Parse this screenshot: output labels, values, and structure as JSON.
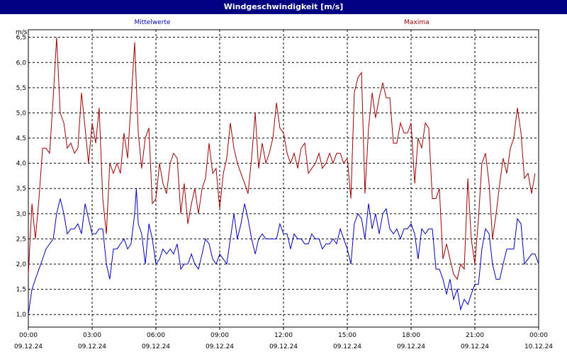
{
  "chart_data": {
    "type": "line",
    "title": "Windgeschwindigkeit [m/s]",
    "ylabel": "m/s",
    "ylim": [
      0.75,
      6.65
    ],
    "yticks": [
      1.0,
      1.5,
      2.0,
      2.5,
      3.0,
      3.5,
      4.0,
      4.5,
      5.0,
      5.5,
      6.0,
      6.5
    ],
    "ytick_labels": [
      "1,0",
      "1,5",
      "2,0",
      "2,5",
      "3,0",
      "3,5",
      "4,0",
      "4,5",
      "5,0",
      "5,5",
      "6,0",
      "6,5"
    ],
    "xlim": [
      0,
      24
    ],
    "xticks": [
      {
        "time": "00:00",
        "date": "09.12.24"
      },
      {
        "time": "03:00",
        "date": "09.12.24"
      },
      {
        "time": "06:00",
        "date": "09.12.24"
      },
      {
        "time": "09:00",
        "date": "09.12.24"
      },
      {
        "time": "12:00",
        "date": "09.12.24"
      },
      {
        "time": "15:00",
        "date": "09.12.24"
      },
      {
        "time": "18:00",
        "date": "09.12.24"
      },
      {
        "time": "21:00",
        "date": "09.12.24"
      },
      {
        "time": "00:00",
        "date": "10.12.24"
      }
    ],
    "grid": true,
    "legend": "top",
    "series": [
      {
        "name": "Mittelwerte",
        "color": "#0000c0",
        "points": [
          [
            0,
            1.0
          ],
          [
            0.17,
            1.5
          ],
          [
            0.33,
            1.7
          ],
          [
            0.5,
            1.9
          ],
          [
            0.67,
            2.1
          ],
          [
            0.83,
            2.3
          ],
          [
            1,
            2.4
          ],
          [
            1.17,
            2.5
          ],
          [
            1.33,
            3.0
          ],
          [
            1.5,
            3.3
          ],
          [
            1.67,
            3.0
          ],
          [
            1.83,
            2.6
          ],
          [
            2,
            2.7
          ],
          [
            2.17,
            2.7
          ],
          [
            2.33,
            2.8
          ],
          [
            2.5,
            2.6
          ],
          [
            2.67,
            3.2
          ],
          [
            2.83,
            2.9
          ],
          [
            3,
            2.6
          ],
          [
            3.17,
            2.6
          ],
          [
            3.33,
            2.7
          ],
          [
            3.5,
            2.7
          ],
          [
            3.67,
            2.0
          ],
          [
            3.83,
            1.7
          ],
          [
            4,
            2.3
          ],
          [
            4.17,
            2.3
          ],
          [
            4.33,
            2.4
          ],
          [
            4.5,
            2.5
          ],
          [
            4.67,
            2.3
          ],
          [
            4.83,
            2.4
          ],
          [
            5,
            3.0
          ],
          [
            5.08,
            3.5
          ],
          [
            5.17,
            2.8
          ],
          [
            5.33,
            2.6
          ],
          [
            5.5,
            2.0
          ],
          [
            5.67,
            2.8
          ],
          [
            5.83,
            2.5
          ],
          [
            6,
            2.0
          ],
          [
            6.17,
            2.1
          ],
          [
            6.33,
            2.3
          ],
          [
            6.5,
            2.2
          ],
          [
            6.67,
            2.3
          ],
          [
            6.83,
            2.2
          ],
          [
            7,
            2.4
          ],
          [
            7.17,
            1.9
          ],
          [
            7.33,
            2.0
          ],
          [
            7.5,
            2.0
          ],
          [
            7.67,
            2.2
          ],
          [
            7.83,
            2.0
          ],
          [
            8,
            1.9
          ],
          [
            8.17,
            2.2
          ],
          [
            8.33,
            2.5
          ],
          [
            8.5,
            2.4
          ],
          [
            8.67,
            2.1
          ],
          [
            8.83,
            2.0
          ],
          [
            9,
            2.2
          ],
          [
            9.17,
            2.1
          ],
          [
            9.33,
            2.0
          ],
          [
            9.5,
            2.5
          ],
          [
            9.67,
            3.0
          ],
          [
            9.83,
            2.5
          ],
          [
            10,
            2.8
          ],
          [
            10.17,
            3.2
          ],
          [
            10.33,
            2.9
          ],
          [
            10.5,
            2.5
          ],
          [
            10.67,
            2.2
          ],
          [
            10.83,
            2.5
          ],
          [
            11,
            2.6
          ],
          [
            11.17,
            2.5
          ],
          [
            11.33,
            2.5
          ],
          [
            11.5,
            2.5
          ],
          [
            11.67,
            2.5
          ],
          [
            11.83,
            2.8
          ],
          [
            12,
            2.6
          ],
          [
            12.17,
            2.6
          ],
          [
            12.33,
            2.3
          ],
          [
            12.5,
            2.6
          ],
          [
            12.67,
            2.5
          ],
          [
            12.83,
            2.5
          ],
          [
            13,
            2.4
          ],
          [
            13.17,
            2.4
          ],
          [
            13.33,
            2.6
          ],
          [
            13.5,
            2.5
          ],
          [
            13.67,
            2.5
          ],
          [
            13.83,
            2.3
          ],
          [
            14,
            2.4
          ],
          [
            14.17,
            2.4
          ],
          [
            14.33,
            2.5
          ],
          [
            14.5,
            2.4
          ],
          [
            14.67,
            2.7
          ],
          [
            14.83,
            2.5
          ],
          [
            15,
            2.3
          ],
          [
            15.17,
            2.0
          ],
          [
            15.33,
            2.8
          ],
          [
            15.5,
            3.0
          ],
          [
            15.67,
            2.9
          ],
          [
            15.83,
            2.5
          ],
          [
            16,
            3.2
          ],
          [
            16.17,
            2.7
          ],
          [
            16.33,
            3.0
          ],
          [
            16.5,
            2.6
          ],
          [
            16.67,
            3.0
          ],
          [
            16.83,
            3.1
          ],
          [
            17,
            2.7
          ],
          [
            17.17,
            2.6
          ],
          [
            17.33,
            2.7
          ],
          [
            17.5,
            2.5
          ],
          [
            17.67,
            2.7
          ],
          [
            17.83,
            2.7
          ],
          [
            18,
            2.8
          ],
          [
            18.17,
            2.6
          ],
          [
            18.33,
            2.1
          ],
          [
            18.5,
            2.7
          ],
          [
            18.67,
            2.6
          ],
          [
            18.83,
            2.7
          ],
          [
            19,
            2.7
          ],
          [
            19.17,
            1.9
          ],
          [
            19.33,
            1.9
          ],
          [
            19.5,
            1.7
          ],
          [
            19.67,
            1.4
          ],
          [
            19.83,
            1.7
          ],
          [
            20,
            1.3
          ],
          [
            20.17,
            1.5
          ],
          [
            20.33,
            1.1
          ],
          [
            20.5,
            1.3
          ],
          [
            20.67,
            1.2
          ],
          [
            20.83,
            1.4
          ],
          [
            21,
            1.6
          ],
          [
            21.17,
            1.6
          ],
          [
            21.33,
            2.3
          ],
          [
            21.5,
            2.7
          ],
          [
            21.67,
            2.6
          ],
          [
            21.83,
            2.0
          ],
          [
            22,
            1.7
          ],
          [
            22.17,
            1.7
          ],
          [
            22.33,
            2.0
          ],
          [
            22.5,
            2.3
          ],
          [
            22.67,
            2.3
          ],
          [
            22.83,
            2.3
          ],
          [
            23,
            2.9
          ],
          [
            23.17,
            2.8
          ],
          [
            23.33,
            2.0
          ],
          [
            23.5,
            2.1
          ],
          [
            23.67,
            2.2
          ],
          [
            23.83,
            2.2
          ],
          [
            24,
            2.0
          ]
        ]
      },
      {
        "name": "Maxima",
        "color": "#a00000",
        "points": [
          [
            0,
            1.8
          ],
          [
            0.17,
            3.2
          ],
          [
            0.33,
            2.5
          ],
          [
            0.5,
            3.3
          ],
          [
            0.67,
            4.3
          ],
          [
            0.83,
            4.3
          ],
          [
            1,
            4.2
          ],
          [
            1.17,
            5.3
          ],
          [
            1.33,
            6.5
          ],
          [
            1.5,
            5.0
          ],
          [
            1.67,
            4.8
          ],
          [
            1.83,
            4.3
          ],
          [
            2,
            4.4
          ],
          [
            2.17,
            4.2
          ],
          [
            2.33,
            4.3
          ],
          [
            2.5,
            5.4
          ],
          [
            2.67,
            4.7
          ],
          [
            2.83,
            4.0
          ],
          [
            3,
            4.8
          ],
          [
            3.17,
            4.4
          ],
          [
            3.33,
            5.1
          ],
          [
            3.5,
            3.3
          ],
          [
            3.67,
            2.6
          ],
          [
            3.83,
            4.0
          ],
          [
            4,
            3.8
          ],
          [
            4.17,
            4.0
          ],
          [
            4.33,
            3.8
          ],
          [
            4.5,
            4.6
          ],
          [
            4.67,
            4.1
          ],
          [
            4.83,
            5.2
          ],
          [
            5,
            6.4
          ],
          [
            5.17,
            4.6
          ],
          [
            5.33,
            3.9
          ],
          [
            5.5,
            4.5
          ],
          [
            5.67,
            4.7
          ],
          [
            5.83,
            3.2
          ],
          [
            6,
            3.3
          ],
          [
            6.17,
            4.0
          ],
          [
            6.33,
            3.6
          ],
          [
            6.5,
            3.4
          ],
          [
            6.67,
            4.0
          ],
          [
            6.83,
            4.2
          ],
          [
            7,
            4.1
          ],
          [
            7.17,
            3.0
          ],
          [
            7.33,
            3.6
          ],
          [
            7.5,
            2.8
          ],
          [
            7.67,
            3.2
          ],
          [
            7.83,
            3.5
          ],
          [
            8,
            3.0
          ],
          [
            8.17,
            3.5
          ],
          [
            8.33,
            3.7
          ],
          [
            8.5,
            4.4
          ],
          [
            8.67,
            3.8
          ],
          [
            8.83,
            3.9
          ],
          [
            9,
            3.1
          ],
          [
            9.17,
            3.8
          ],
          [
            9.33,
            4.1
          ],
          [
            9.5,
            4.8
          ],
          [
            9.67,
            4.3
          ],
          [
            9.83,
            4.0
          ],
          [
            10,
            3.8
          ],
          [
            10.17,
            3.6
          ],
          [
            10.33,
            3.4
          ],
          [
            10.5,
            4.1
          ],
          [
            10.67,
            5.0
          ],
          [
            10.83,
            3.9
          ],
          [
            11,
            4.4
          ],
          [
            11.17,
            4.0
          ],
          [
            11.33,
            4.2
          ],
          [
            11.5,
            4.5
          ],
          [
            11.67,
            5.2
          ],
          [
            11.83,
            4.7
          ],
          [
            12,
            4.6
          ],
          [
            12.17,
            4.2
          ],
          [
            12.33,
            4.0
          ],
          [
            12.5,
            4.2
          ],
          [
            12.67,
            3.9
          ],
          [
            12.83,
            4.3
          ],
          [
            13,
            4.4
          ],
          [
            13.17,
            3.8
          ],
          [
            13.33,
            3.9
          ],
          [
            13.5,
            4.0
          ],
          [
            13.67,
            4.2
          ],
          [
            13.83,
            3.9
          ],
          [
            14,
            4.0
          ],
          [
            14.17,
            4.2
          ],
          [
            14.33,
            4.0
          ],
          [
            14.5,
            4.2
          ],
          [
            14.67,
            4.2
          ],
          [
            14.83,
            4.0
          ],
          [
            15,
            4.1
          ],
          [
            15.17,
            3.3
          ],
          [
            15.33,
            5.4
          ],
          [
            15.5,
            5.7
          ],
          [
            15.67,
            5.8
          ],
          [
            15.83,
            3.4
          ],
          [
            16,
            4.7
          ],
          [
            16.17,
            5.4
          ],
          [
            16.33,
            4.9
          ],
          [
            16.5,
            5.3
          ],
          [
            16.67,
            5.6
          ],
          [
            16.83,
            5.3
          ],
          [
            17,
            5.3
          ],
          [
            17.17,
            4.4
          ],
          [
            17.33,
            4.4
          ],
          [
            17.5,
            4.8
          ],
          [
            17.67,
            4.6
          ],
          [
            17.83,
            4.6
          ],
          [
            18,
            4.8
          ],
          [
            18.17,
            3.6
          ],
          [
            18.33,
            4.5
          ],
          [
            18.5,
            4.3
          ],
          [
            18.67,
            4.8
          ],
          [
            18.83,
            4.7
          ],
          [
            19,
            3.3
          ],
          [
            19.17,
            3.3
          ],
          [
            19.33,
            3.5
          ],
          [
            19.5,
            2.1
          ],
          [
            19.67,
            2.4
          ],
          [
            19.83,
            2.1
          ],
          [
            20,
            1.8
          ],
          [
            20.17,
            1.7
          ],
          [
            20.33,
            2.0
          ],
          [
            20.5,
            1.9
          ],
          [
            20.67,
            3.7
          ],
          [
            20.83,
            2.5
          ],
          [
            21,
            2.0
          ],
          [
            21.17,
            2.9
          ],
          [
            21.33,
            4.0
          ],
          [
            21.5,
            4.2
          ],
          [
            21.67,
            3.6
          ],
          [
            21.83,
            2.5
          ],
          [
            22,
            3.0
          ],
          [
            22.17,
            3.6
          ],
          [
            22.33,
            4.1
          ],
          [
            22.5,
            3.8
          ],
          [
            22.67,
            4.3
          ],
          [
            22.83,
            4.5
          ],
          [
            23,
            5.1
          ],
          [
            23.17,
            4.6
          ],
          [
            23.33,
            3.7
          ],
          [
            23.5,
            3.8
          ],
          [
            23.67,
            3.4
          ],
          [
            23.83,
            3.8
          ]
        ]
      }
    ]
  }
}
